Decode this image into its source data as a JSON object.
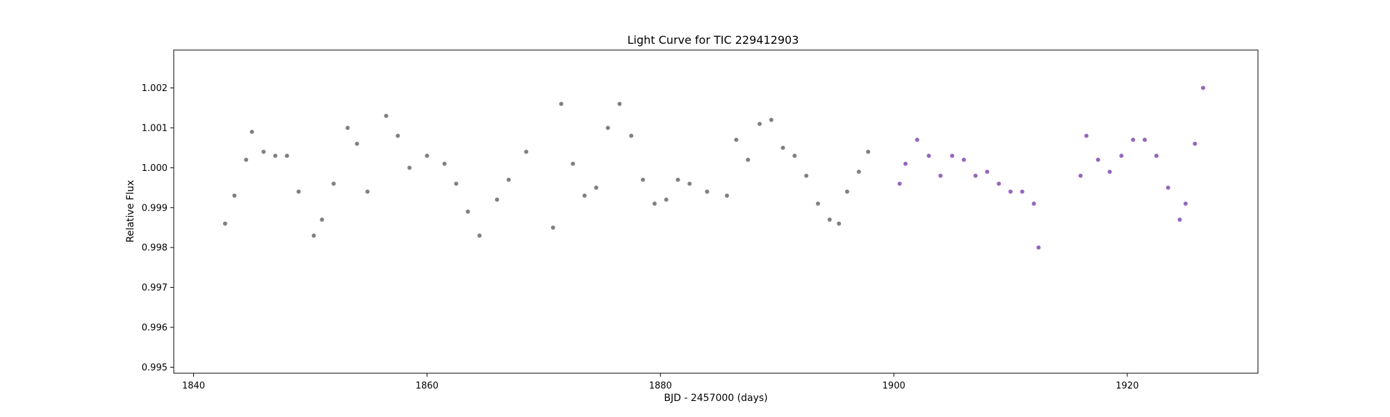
{
  "chart_data": {
    "type": "scatter",
    "title": "Light Curve for TIC 229412903",
    "xlabel": "BJD - 2457000 (days)",
    "ylabel": "Relative Flux",
    "xlim": [
      1838.3,
      1931.2
    ],
    "ylim": [
      0.99485,
      1.00295
    ],
    "x_ticks": [
      1840,
      1860,
      1880,
      1900,
      1920
    ],
    "y_ticks": [
      0.995,
      0.996,
      0.997,
      0.998,
      0.999,
      1.0,
      1.001,
      1.002
    ],
    "grid": false,
    "series": [
      {
        "color": "#808080",
        "segments": [
          {
            "x": [
              1842.7,
              1843.5,
              1844.5,
              1845.0,
              1846.0,
              1847.0,
              1848.0,
              1849.0,
              1850.3,
              1851.0,
              1852.0,
              1853.2,
              1854.0,
              1854.9
            ],
            "y": [
              0.9986,
              0.9993,
              1.0002,
              1.0009,
              1.0004,
              1.0003,
              1.0003,
              0.9994,
              0.9983,
              0.9987,
              0.9996,
              1.001,
              1.0006,
              0.9994
            ]
          },
          {
            "x": [
              1856.5,
              1857.5,
              1858.5,
              1860.0,
              1861.5,
              1862.5,
              1863.5,
              1864.5,
              1866.0,
              1867.0,
              1868.5
            ],
            "y": [
              1.0013,
              1.0008,
              1.0,
              1.0003,
              1.0001,
              0.9996,
              0.9989,
              0.9983,
              0.9992,
              0.9997,
              1.0004
            ]
          },
          {
            "x": [
              1870.8,
              1871.5,
              1872.5,
              1873.5,
              1874.5,
              1875.5,
              1876.5,
              1877.5,
              1878.5,
              1879.5,
              1880.5,
              1881.5,
              1882.5,
              1884.0
            ],
            "y": [
              0.9985,
              1.0016,
              1.0001,
              0.9993,
              0.9995,
              1.001,
              1.0016,
              1.0008,
              0.9997,
              0.9991,
              0.9992,
              0.9997,
              0.9996,
              0.9994
            ]
          },
          {
            "x": [
              1885.7,
              1886.5,
              1887.5,
              1888.5,
              1889.5,
              1890.5,
              1891.5,
              1892.5,
              1893.5,
              1894.5,
              1895.3,
              1896.0,
              1897.0,
              1897.8
            ],
            "y": [
              0.9993,
              1.0007,
              1.0002,
              1.0011,
              1.0012,
              1.0005,
              1.0003,
              0.9998,
              0.9991,
              0.9987,
              0.9986,
              0.9994,
              0.9999,
              1.0004
            ]
          }
        ]
      },
      {
        "color": "#9467bd",
        "segments": [
          {
            "x": [
              1900.5,
              1901.0,
              1902.0,
              1903.0,
              1904.0,
              1905.0,
              1906.0,
              1907.0,
              1908.0,
              1909.0,
              1910.0,
              1911.0,
              1912.0,
              1912.4
            ],
            "y": [
              0.9996,
              1.0001,
              1.0007,
              1.0003,
              0.9998,
              1.0003,
              1.0002,
              0.9998,
              0.9999,
              0.9996,
              0.9994,
              0.9994,
              0.9991,
              0.998
            ]
          },
          {
            "x": [
              1916.0,
              1916.5,
              1917.5,
              1918.5,
              1919.5,
              1920.5,
              1921.5,
              1922.5,
              1923.5,
              1924.5,
              1925.0,
              1925.8,
              1926.5
            ],
            "y": [
              0.9998,
              1.0008,
              1.0002,
              0.9999,
              1.0003,
              1.0007,
              1.0007,
              1.0003,
              0.9995,
              0.9987,
              0.9991,
              1.0006,
              1.002
            ]
          }
        ]
      }
    ]
  }
}
